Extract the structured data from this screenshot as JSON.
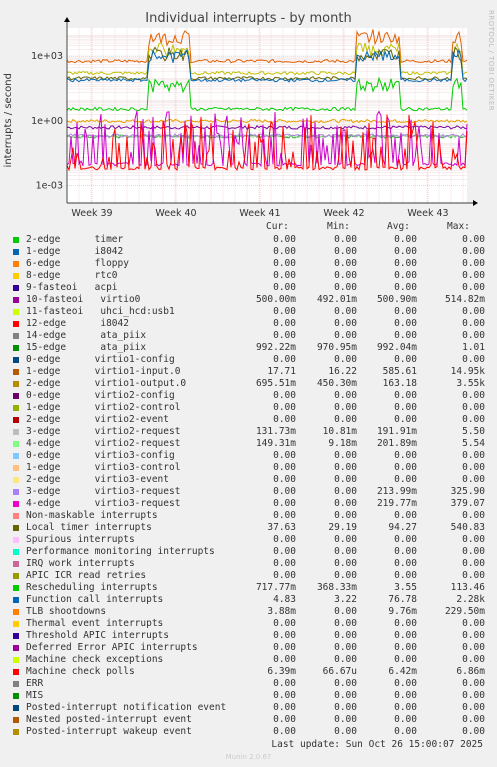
{
  "chart_data": {
    "type": "line",
    "title": "Individual interrupts - by month",
    "ylabel": "interrupts / second",
    "y_scale": "log",
    "y_ticks": [
      "1e+03",
      "1e+00",
      "1e-03"
    ],
    "y_tick_values": [
      1000,
      1,
      0.001
    ],
    "x_ticks": [
      "Week 39",
      "Week 40",
      "Week 41",
      "Week 42",
      "Week 43"
    ],
    "grid": true,
    "series_levels": [
      {
        "name": "10-fasteoi virtio0",
        "color": "#7a0099",
        "level": 0.5
      },
      {
        "name": "15-edge ata_piix",
        "color": "#e8a000",
        "level": 0.99
      },
      {
        "name": "1-edge virtio1-input.0",
        "color": "#e06000",
        "level": 585.61
      },
      {
        "name": "2-edge virtio1-output.0",
        "color": "#c0c000",
        "level": 163.18
      },
      {
        "name": "3-edge virtio2-request",
        "color": "#33aa33",
        "level": 0.19
      },
      {
        "name": "4-edge virtio2-request",
        "color": "#99dd99",
        "level": 0.2
      },
      {
        "name": "3-edge virtio3-request",
        "color": "#b080e0",
        "level": 0.21
      },
      {
        "name": "Local timer interrupts",
        "color": "#666600",
        "level": 94.27
      },
      {
        "name": "Rescheduling interrupts",
        "color": "#00cc00",
        "level": 3.55
      },
      {
        "name": "Function call interrupts",
        "color": "#0066b3",
        "level": 76.78
      },
      {
        "name": "TLB shootdowns",
        "color": "#cc00cc",
        "level": 0.0098
      },
      {
        "name": "Machine check polls",
        "color": "#ff0000",
        "level": 0.0064
      }
    ]
  },
  "legend": {
    "headers": {
      "cur": "Cur:",
      "min": "Min:",
      "avg": "Avg:",
      "max": "Max:"
    },
    "rows": [
      {
        "name": "2-edge      timer",
        "color": "#00cc00",
        "cur": "0.00",
        "min": "0.00",
        "avg": "0.00",
        "max": "0.00"
      },
      {
        "name": "1-edge      i8042",
        "color": "#0066b3",
        "cur": "0.00",
        "min": "0.00",
        "avg": "0.00",
        "max": "0.00"
      },
      {
        "name": "6-edge      floppy",
        "color": "#ff8000",
        "cur": "0.00",
        "min": "0.00",
        "avg": "0.00",
        "max": "0.00"
      },
      {
        "name": "8-edge      rtc0",
        "color": "#ffcc00",
        "cur": "0.00",
        "min": "0.00",
        "avg": "0.00",
        "max": "0.00"
      },
      {
        "name": "9-fasteoi   acpi",
        "color": "#330099",
        "cur": "0.00",
        "min": "0.00",
        "avg": "0.00",
        "max": "0.00"
      },
      {
        "name": "10-fasteoi   virtio0",
        "color": "#990099",
        "cur": "500.00m",
        "min": "492.01m",
        "avg": "500.90m",
        "max": "514.82m"
      },
      {
        "name": "11-fasteoi   uhci_hcd:usb1",
        "color": "#ccff00",
        "cur": "0.00",
        "min": "0.00",
        "avg": "0.00",
        "max": "0.00"
      },
      {
        "name": "12-edge      i8042",
        "color": "#ff0000",
        "cur": "0.00",
        "min": "0.00",
        "avg": "0.00",
        "max": "0.00"
      },
      {
        "name": "14-edge      ata_piix",
        "color": "#808080",
        "cur": "0.00",
        "min": "0.00",
        "avg": "0.00",
        "max": "0.00"
      },
      {
        "name": "15-edge      ata_piix",
        "color": "#008f00",
        "cur": "992.22m",
        "min": "970.95m",
        "avg": "992.04m",
        "max": "1.01"
      },
      {
        "name": "0-edge      virtio1-config",
        "color": "#00487d",
        "cur": "0.00",
        "min": "0.00",
        "avg": "0.00",
        "max": "0.00"
      },
      {
        "name": "1-edge      virtio1-input.0",
        "color": "#b35a00",
        "cur": "17.71",
        "min": "16.22",
        "avg": "585.61",
        "max": "14.95k"
      },
      {
        "name": "2-edge      virtio1-output.0",
        "color": "#b38f00",
        "cur": "695.51m",
        "min": "450.30m",
        "avg": "163.18",
        "max": "3.55k"
      },
      {
        "name": "0-edge      virtio2-config",
        "color": "#6b006b",
        "cur": "0.00",
        "min": "0.00",
        "avg": "0.00",
        "max": "0.00"
      },
      {
        "name": "1-edge      virtio2-control",
        "color": "#8fb300",
        "cur": "0.00",
        "min": "0.00",
        "avg": "0.00",
        "max": "0.00"
      },
      {
        "name": "2-edge      virtio2-event",
        "color": "#b30000",
        "cur": "0.00",
        "min": "0.00",
        "avg": "0.00",
        "max": "0.00"
      },
      {
        "name": "3-edge      virtio2-request",
        "color": "#bebebe",
        "cur": "131.73m",
        "min": "10.81m",
        "avg": "191.91m",
        "max": "5.50"
      },
      {
        "name": "4-edge      virtio2-request",
        "color": "#80ff80",
        "cur": "149.31m",
        "min": "9.18m",
        "avg": "201.89m",
        "max": "5.54"
      },
      {
        "name": "0-edge      virtio3-config",
        "color": "#80c9ff",
        "cur": "0.00",
        "min": "0.00",
        "avg": "0.00",
        "max": "0.00"
      },
      {
        "name": "1-edge      virtio3-control",
        "color": "#ffc080",
        "cur": "0.00",
        "min": "0.00",
        "avg": "0.00",
        "max": "0.00"
      },
      {
        "name": "2-edge      virtio3-event",
        "color": "#ffe680",
        "cur": "0.00",
        "min": "0.00",
        "avg": "0.00",
        "max": "0.00"
      },
      {
        "name": "3-edge      virtio3-request",
        "color": "#aa80ff",
        "cur": "0.00",
        "min": "0.00",
        "avg": "213.99m",
        "max": "325.90"
      },
      {
        "name": "4-edge      virtio3-request",
        "color": "#ee00cc",
        "cur": "0.00",
        "min": "0.00",
        "avg": "219.77m",
        "max": "379.07"
      },
      {
        "name": "Non-maskable interrupts",
        "color": "#ff8080",
        "cur": "0.00",
        "min": "0.00",
        "avg": "0.00",
        "max": "0.00"
      },
      {
        "name": "Local timer interrupts",
        "color": "#666600",
        "cur": "37.63",
        "min": "29.19",
        "avg": "94.27",
        "max": "540.83"
      },
      {
        "name": "Spurious interrupts",
        "color": "#ffbfff",
        "cur": "0.00",
        "min": "0.00",
        "avg": "0.00",
        "max": "0.00"
      },
      {
        "name": "Performance monitoring interrupts",
        "color": "#00ffcc",
        "cur": "0.00",
        "min": "0.00",
        "avg": "0.00",
        "max": "0.00"
      },
      {
        "name": "IRQ work interrupts",
        "color": "#cc6699",
        "cur": "0.00",
        "min": "0.00",
        "avg": "0.00",
        "max": "0.00"
      },
      {
        "name": "APIC ICR read retries",
        "color": "#999900",
        "cur": "0.00",
        "min": "0.00",
        "avg": "0.00",
        "max": "0.00"
      },
      {
        "name": "Rescheduling interrupts",
        "color": "#00cc00",
        "cur": "717.77m",
        "min": "368.33m",
        "avg": "3.55",
        "max": "113.46"
      },
      {
        "name": "Function call interrupts",
        "color": "#0066b3",
        "cur": "4.83",
        "min": "3.22",
        "avg": "76.78",
        "max": "2.28k"
      },
      {
        "name": "TLB shootdowns",
        "color": "#ff8000",
        "cur": "3.88m",
        "min": "0.00",
        "avg": "9.76m",
        "max": "229.50m"
      },
      {
        "name": "Thermal event interrupts",
        "color": "#ffcc00",
        "cur": "0.00",
        "min": "0.00",
        "avg": "0.00",
        "max": "0.00"
      },
      {
        "name": "Threshold APIC interrupts",
        "color": "#330099",
        "cur": "0.00",
        "min": "0.00",
        "avg": "0.00",
        "max": "0.00"
      },
      {
        "name": "Deferred Error APIC interrupts",
        "color": "#990099",
        "cur": "0.00",
        "min": "0.00",
        "avg": "0.00",
        "max": "0.00"
      },
      {
        "name": "Machine check exceptions",
        "color": "#ccff00",
        "cur": "0.00",
        "min": "0.00",
        "avg": "0.00",
        "max": "0.00"
      },
      {
        "name": "Machine check polls",
        "color": "#ff0000",
        "cur": "6.39m",
        "min": "66.67u",
        "avg": "6.42m",
        "max": "6.86m"
      },
      {
        "name": "ERR",
        "color": "#808080",
        "cur": "0.00",
        "min": "0.00",
        "avg": "0.00",
        "max": "0.00"
      },
      {
        "name": "MIS",
        "color": "#008f00",
        "cur": "0.00",
        "min": "0.00",
        "avg": "0.00",
        "max": "0.00"
      },
      {
        "name": "Posted-interrupt notification event",
        "color": "#00487d",
        "cur": "0.00",
        "min": "0.00",
        "avg": "0.00",
        "max": "0.00"
      },
      {
        "name": "Nested posted-interrupt event",
        "color": "#b35a00",
        "cur": "0.00",
        "min": "0.00",
        "avg": "0.00",
        "max": "0.00"
      },
      {
        "name": "Posted-interrupt wakeup event",
        "color": "#b38f00",
        "cur": "0.00",
        "min": "0.00",
        "avg": "0.00",
        "max": "0.00"
      }
    ]
  },
  "last_update": "Last update: Sun Oct 26 15:00:07 2025",
  "side_label": "RRDTOOL / TOBI OETIKER",
  "footer": "Munin 2.0.67"
}
